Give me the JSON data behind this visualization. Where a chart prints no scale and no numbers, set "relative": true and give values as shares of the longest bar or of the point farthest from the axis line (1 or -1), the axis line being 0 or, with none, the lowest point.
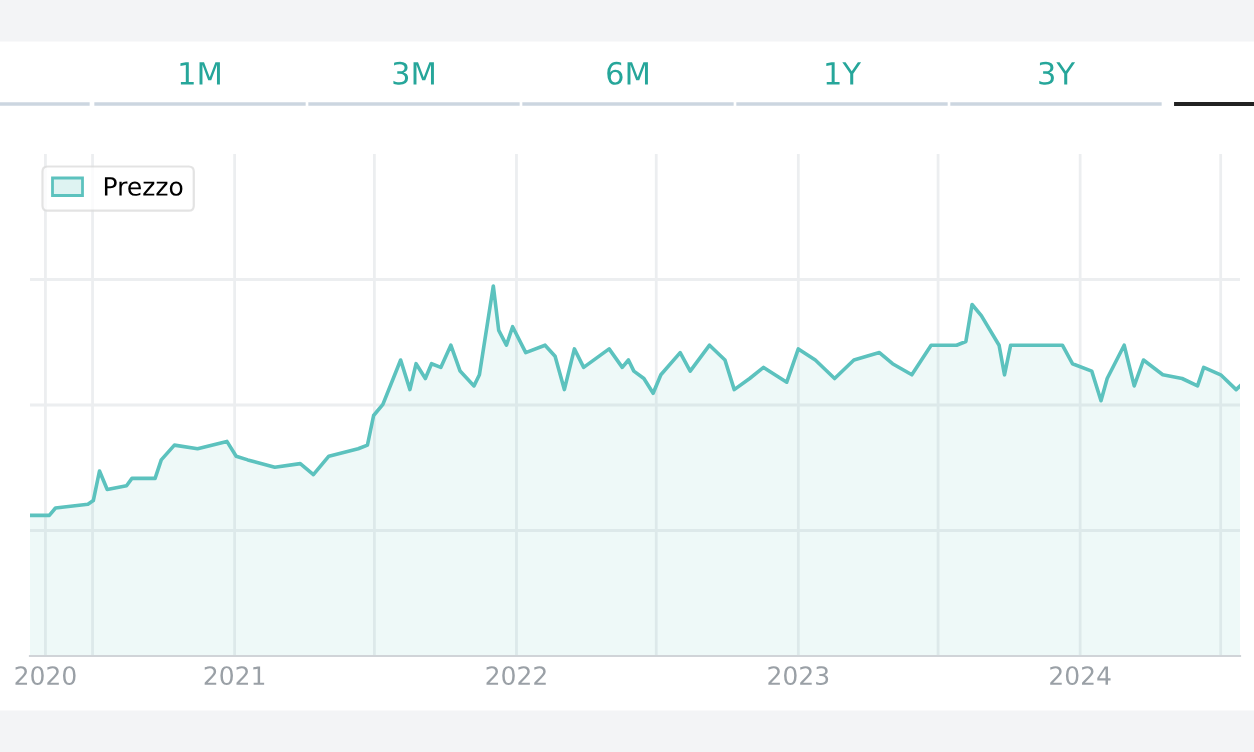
{
  "chart_data": {
    "type": "area",
    "relative": true,
    "legend": "top left",
    "grid": true,
    "marker": "none",
    "line_style": "solid",
    "annotations": [
      "1M",
      "3M",
      "6M",
      "1Y",
      "3Y"
    ],
    "xlim": [
      "2020-04-11",
      "2024-07-26"
    ],
    "xticks": [
      {
        "value": "2020-05-01",
        "label": "2020"
      },
      {
        "value": "2021-01-01",
        "label": "2021"
      },
      {
        "value": "2022-01-01",
        "label": "2022"
      },
      {
        "value": "2023-01-01",
        "label": "2023"
      },
      {
        "value": "2024-01-01",
        "label": "2024"
      },
      {
        "value": "2020-07-01",
        "label": null
      },
      {
        "value": "2021-07-01",
        "label": null
      },
      {
        "value": "2022-07-01",
        "label": null
      },
      {
        "value": "2023-07-01",
        "label": null
      },
      {
        "value": "2024-07-01",
        "label": null
      }
    ],
    "series": [
      {
        "name": "Prezzo",
        "color": "#5cc2be",
        "x": [
          "2020-04-11",
          "2020-05-06",
          "2020-05-14",
          "2020-06-25",
          "2020-07-02",
          "2020-07-10",
          "2020-07-20",
          "2020-08-14",
          "2020-08-21",
          "2020-09-20",
          "2020-09-28",
          "2020-10-15",
          "2020-11-14",
          "2020-12-22",
          "2021-01-03",
          "2021-01-18",
          "2021-02-22",
          "2021-03-27",
          "2021-04-13",
          "2021-05-03",
          "2021-06-10",
          "2021-06-22",
          "2021-06-30",
          "2021-07-12",
          "2021-08-04",
          "2021-08-16",
          "2021-08-24",
          "2021-09-05",
          "2021-09-13",
          "2021-09-25",
          "2021-10-08",
          "2021-10-20",
          "2021-11-07",
          "2021-11-14",
          "2021-12-02",
          "2021-12-09",
          "2021-12-19",
          "2021-12-27",
          "2022-01-13",
          "2022-02-07",
          "2022-02-20",
          "2022-03-04",
          "2022-03-17",
          "2022-03-29",
          "2022-05-01",
          "2022-05-18",
          "2022-05-26",
          "2022-06-02",
          "2022-06-15",
          "2022-06-27",
          "2022-07-07",
          "2022-08-01",
          "2022-08-14",
          "2022-09-08",
          "2022-09-28",
          "2022-10-10",
          "2022-10-30",
          "2022-11-17",
          "2022-12-17",
          "2023-01-01",
          "2023-01-23",
          "2023-02-17",
          "2023-03-14",
          "2023-04-16",
          "2023-05-03",
          "2023-05-28",
          "2023-06-22",
          "2023-07-25",
          "2023-08-06",
          "2023-08-14",
          "2023-08-26",
          "2023-09-18",
          "2023-09-25",
          "2023-10-03",
          "2023-11-02",
          "2023-12-09",
          "2023-12-22",
          "2024-01-16",
          "2024-01-28",
          "2024-02-05",
          "2024-02-27",
          "2024-03-11",
          "2024-03-23",
          "2024-04-17",
          "2024-05-12",
          "2024-06-01",
          "2024-06-09",
          "2024-07-01",
          "2024-07-21",
          "2024-07-26"
        ],
        "values": [
          0.38,
          0.38,
          0.4,
          0.41,
          0.42,
          0.5,
          0.45,
          0.46,
          0.48,
          0.48,
          0.53,
          0.57,
          0.56,
          0.58,
          0.54,
          0.53,
          0.51,
          0.52,
          0.49,
          0.54,
          0.56,
          0.57,
          0.65,
          0.68,
          0.8,
          0.72,
          0.79,
          0.75,
          0.79,
          0.78,
          0.84,
          0.77,
          0.73,
          0.76,
          1,
          0.88,
          0.84,
          0.89,
          0.82,
          0.84,
          0.81,
          0.72,
          0.83,
          0.78,
          0.83,
          0.78,
          0.8,
          0.77,
          0.75,
          0.71,
          0.76,
          0.82,
          0.77,
          0.84,
          0.8,
          0.72,
          0.75,
          0.78,
          0.74,
          0.83,
          0.8,
          0.75,
          0.8,
          0.82,
          0.79,
          0.76,
          0.84,
          0.84,
          0.85,
          0.95,
          0.92,
          0.84,
          0.76,
          0.84,
          0.84,
          0.84,
          0.79,
          0.77,
          0.69,
          0.75,
          0.84,
          0.73,
          0.8,
          0.76,
          0.75,
          0.73,
          0.78,
          0.76,
          0.72,
          0.73
        ]
      }
    ]
  }
}
